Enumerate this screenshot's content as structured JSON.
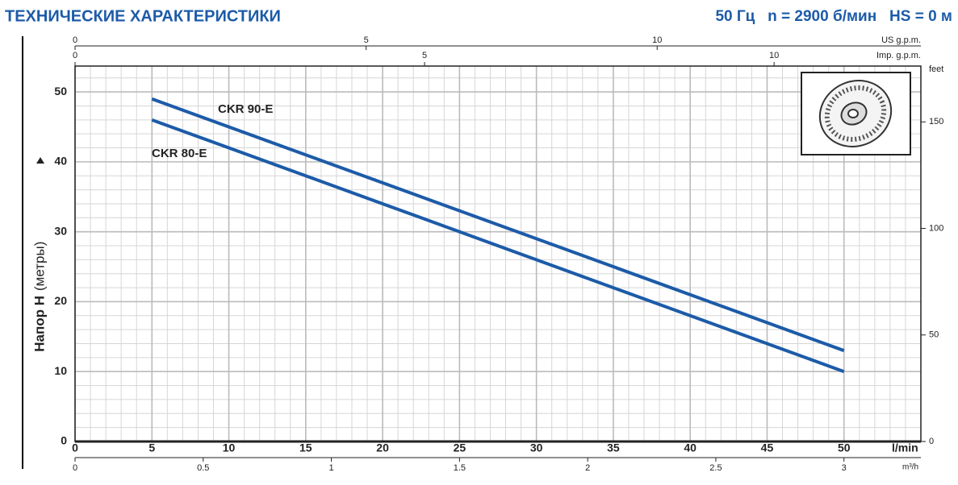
{
  "chart_data": {
    "type": "line",
    "title": "ТЕХНИЧЕСКИЕ ХАРАКТЕРИСТИКИ",
    "subtitle": "50 Гц   n = 2900 б/мин   HS = 0 м",
    "ylabel": "Напор H",
    "ylabel_unit": "(метры)",
    "xlabel": "l/min",
    "xlim": [
      0,
      55
    ],
    "xticks": [
      0,
      5,
      10,
      15,
      20,
      25,
      30,
      35,
      40,
      45,
      50
    ],
    "ylim": [
      0,
      53.7
    ],
    "yticks": [
      0,
      10,
      20,
      30,
      40,
      50
    ],
    "minor_xticks": [
      1,
      2,
      3,
      4,
      6,
      7,
      8,
      9,
      11,
      12,
      13,
      14,
      16,
      17,
      18,
      19,
      21,
      22,
      23,
      24,
      26,
      27,
      28,
      29,
      31,
      32,
      33,
      34,
      36,
      37,
      38,
      39,
      41,
      42,
      43,
      44,
      46,
      47,
      48,
      49,
      51,
      52,
      53,
      54
    ],
    "minor_yticks": [
      2,
      4,
      6,
      8,
      12,
      14,
      16,
      18,
      22,
      24,
      26,
      28,
      32,
      34,
      36,
      38,
      42,
      44,
      46,
      48,
      52
    ],
    "grid": true,
    "x": [
      5,
      50
    ],
    "series": [
      {
        "name": "CKR 90-E",
        "color": "#1c5ba8",
        "values": [
          49,
          13
        ]
      },
      {
        "name": "CKR 80-E",
        "color": "#1c5ba8",
        "values": [
          46,
          10
        ]
      }
    ],
    "top_us": {
      "label": "US g.p.m.",
      "xlim": [
        0,
        14.53
      ],
      "xticks": [
        0,
        5,
        10
      ]
    },
    "top_imp": {
      "label": "Imp. g.p.m.",
      "xlim": [
        0,
        12.1
      ],
      "xticks": [
        0,
        5,
        10
      ]
    },
    "bottom_m3h": {
      "label": "m³/h",
      "xlim": [
        0,
        3.3
      ],
      "xticks": [
        0,
        0.5,
        1,
        1.5,
        2,
        2.5,
        3
      ]
    },
    "right_feet": {
      "label": "feet",
      "ylim": [
        0,
        176.2
      ],
      "yticks": [
        0,
        50,
        100,
        150
      ]
    }
  }
}
